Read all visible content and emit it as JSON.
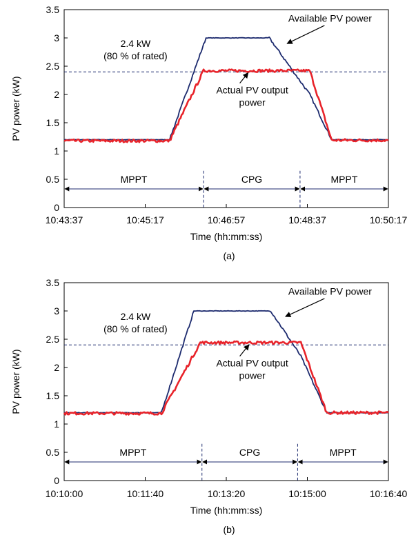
{
  "chart_data": [
    {
      "type": "line",
      "panel_label": "(a)",
      "xlabel": "Time (hh:mm:ss)",
      "ylabel": "PV power (kW)",
      "ylim": [
        0,
        3.5
      ],
      "yticks": [
        0,
        0.5,
        1,
        1.5,
        2,
        2.5,
        3,
        3.5
      ],
      "xlim": [
        "10:43:37",
        "10:50:17"
      ],
      "xticks": [
        "10:43:37",
        "10:45:17",
        "10:46:57",
        "10:48:37",
        "10:50:17"
      ],
      "grid": false,
      "series": [
        {
          "color": "#1c2a6e",
          "x": [
            "10:43:37",
            "10:45:47",
            "10:46:32",
            "10:47:50",
            "10:48:40",
            "10:49:07",
            "10:50:17"
          ],
          "y": [
            1.2,
            1.2,
            3.0,
            3.0,
            2.0,
            1.2,
            1.2
          ]
        },
        {
          "color": "#e8232a",
          "x": [
            "10:43:37",
            "10:45:47",
            "10:46:29",
            "10:48:40",
            "10:49:07",
            "10:50:17"
          ],
          "y": [
            1.18,
            1.18,
            2.42,
            2.42,
            1.19,
            1.19
          ]
        }
      ],
      "reference_line": {
        "y": 2.4,
        "style": "dashed",
        "label": "2.4 kW",
        "label2": "(80 % of rated)"
      },
      "mode_dividers": [
        "10:46:29",
        "10:48:28"
      ],
      "modes": [
        {
          "label": "MPPT",
          "from": "10:43:37",
          "to": "10:46:29"
        },
        {
          "label": "CPG",
          "from": "10:46:29",
          "to": "10:48:28"
        },
        {
          "label": "MPPT",
          "from": "10:48:28",
          "to": "10:50:17"
        }
      ],
      "annotations": [
        {
          "text": "Available PV power",
          "arrow_to": {
            "x": "10:48:12",
            "y": 2.9
          }
        },
        {
          "text": "Actual PV output",
          "text2": "power",
          "arrow_to": {
            "x": "10:47:24",
            "y": 2.42
          }
        }
      ]
    },
    {
      "type": "line",
      "panel_label": "(b)",
      "xlabel": "Time (hh:mm:ss)",
      "ylabel": "PV power (kW)",
      "ylim": [
        0,
        3.5
      ],
      "yticks": [
        0,
        0.5,
        1,
        1.5,
        2,
        2.5,
        3,
        3.5
      ],
      "xlim": [
        "10:10:00",
        "10:16:40"
      ],
      "xticks": [
        "10:10:00",
        "10:11:40",
        "10:13:20",
        "10:15:00",
        "10:16:40"
      ],
      "grid": false,
      "series": [
        {
          "color": "#1c2a6e",
          "x": [
            "10:10:00",
            "10:12:00",
            "10:12:40",
            "10:14:15",
            "10:14:52",
            "10:15:24",
            "10:16:40"
          ],
          "y": [
            1.2,
            1.2,
            3.0,
            3.0,
            2.2,
            1.2,
            1.2
          ]
        },
        {
          "color": "#e8232a",
          "x": [
            "10:10:00",
            "10:12:00",
            "10:12:48",
            "10:14:52",
            "10:15:24",
            "10:16:40"
          ],
          "y": [
            1.19,
            1.19,
            2.44,
            2.44,
            1.2,
            1.2
          ]
        }
      ],
      "reference_line": {
        "y": 2.4,
        "style": "dashed",
        "label": "2.4 kW",
        "label2": "(80 % of rated)"
      },
      "mode_dividers": [
        "10:12:50",
        "10:14:48"
      ],
      "modes": [
        {
          "label": "MPPT",
          "from": "10:10:00",
          "to": "10:12:50"
        },
        {
          "label": "CPG",
          "from": "10:12:50",
          "to": "10:14:48"
        },
        {
          "label": "MPPT",
          "from": "10:14:48",
          "to": "10:16:40"
        }
      ],
      "annotations": [
        {
          "text": "Available PV power",
          "arrow_to": {
            "x": "10:14:33",
            "y": 2.9
          }
        },
        {
          "text": "Actual PV output",
          "text2": "power",
          "arrow_to": {
            "x": "10:13:48",
            "y": 2.44
          }
        }
      ]
    }
  ]
}
